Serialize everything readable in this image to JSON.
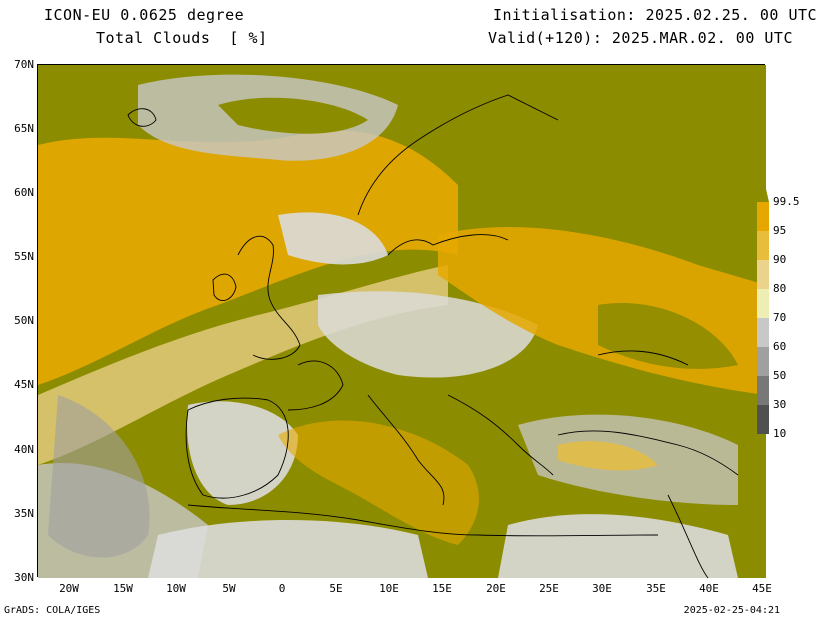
{
  "header": {
    "model": "ICON-EU 0.0625 degree",
    "variable": "Total Clouds  [ %]",
    "init": "Initialisation: 2025.02.25. 00 UTC",
    "valid": "Valid(+120): 2025.MAR.02. 00 UTC"
  },
  "axes": {
    "lat_labels": [
      "70N",
      "65N",
      "60N",
      "55N",
      "50N",
      "45N",
      "40N",
      "35N",
      "30N"
    ],
    "lon_labels": [
      "20W",
      "15W",
      "10W",
      "5W",
      "0",
      "5E",
      "10E",
      "15E",
      "20E",
      "25E",
      "30E",
      "35E",
      "40E",
      "45E"
    ]
  },
  "legend": {
    "levels": [
      "99.5",
      "95",
      "90",
      "80",
      "70",
      "60",
      "50",
      "30",
      "10"
    ],
    "colors": [
      "#8c8c00",
      "#e6a800",
      "#e8bd3c",
      "#ecd38c",
      "#eeeeb4",
      "#c8c8c8",
      "#a0a0a0",
      "#787878",
      "#505050"
    ]
  },
  "footer": {
    "software": "GrADS: COLA/IGES",
    "timestamp": "2025-02-25-04:21"
  }
}
